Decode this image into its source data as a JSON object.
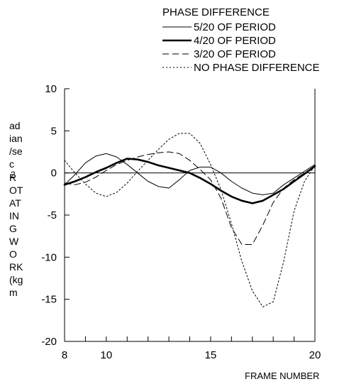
{
  "chart_data": {
    "type": "line",
    "legend": {
      "title": "PHASE DIFFERENCE",
      "placement": "top-right"
    },
    "xlabel": "FRAME NUMBER",
    "ylabel": "ROTATING WORK (kg m)",
    "ylabel_lines": [
      "ad",
      "ian",
      "/se",
      "c",
      "2",
      "R",
      "OT",
      "AT",
      "IN",
      "G",
      "W",
      "O",
      "RK",
      "(kg",
      "m"
    ],
    "xlim": [
      8,
      20
    ],
    "ylim": [
      -20,
      10
    ],
    "xticks": [
      8,
      10,
      15,
      20
    ],
    "yticks": [
      10,
      5,
      0,
      -5,
      -10,
      -15,
      -20
    ],
    "zero_line": true,
    "grid": false,
    "series": [
      {
        "name": "5/20 OF PERIOD",
        "style": "thin-solid",
        "x": [
          8,
          8.5,
          9,
          9.5,
          10,
          10.5,
          11,
          11.5,
          12,
          12.5,
          13,
          13.5,
          14,
          14.5,
          15,
          15.5,
          16,
          16.5,
          17,
          17.5,
          18,
          18.5,
          19,
          19.5,
          20
        ],
        "y": [
          -1.4,
          -0.2,
          1.2,
          2.0,
          2.3,
          1.9,
          1.0,
          0.0,
          -1.0,
          -1.6,
          -1.8,
          -0.8,
          0.3,
          0.7,
          0.7,
          0.0,
          -1.0,
          -1.8,
          -2.4,
          -2.6,
          -2.4,
          -1.4,
          -0.6,
          0.2,
          1.0
        ]
      },
      {
        "name": "4/20 OF PERIOD",
        "style": "thick-solid",
        "x": [
          8,
          8.5,
          9,
          9.5,
          10,
          10.5,
          11,
          11.5,
          12,
          12.5,
          13,
          13.5,
          14,
          14.5,
          15,
          15.5,
          16,
          16.5,
          17,
          17.5,
          18,
          18.5,
          19,
          19.5,
          20
        ],
        "y": [
          -1.4,
          -1.0,
          -0.5,
          0.1,
          0.6,
          1.2,
          1.7,
          1.6,
          1.3,
          0.9,
          0.6,
          0.3,
          0.0,
          -0.6,
          -1.3,
          -2.1,
          -2.8,
          -3.3,
          -3.6,
          -3.3,
          -2.6,
          -1.9,
          -1.0,
          -0.1,
          0.8
        ]
      },
      {
        "name": "3/20 OF PERIOD",
        "style": "dashed",
        "x": [
          8,
          8.5,
          9,
          9.5,
          10,
          10.5,
          11,
          11.5,
          12,
          12.5,
          13,
          13.5,
          14,
          14.5,
          15,
          15.5,
          16,
          16.5,
          17,
          17.5,
          18,
          18.5,
          19,
          19.5,
          20
        ],
        "y": [
          -1.2,
          -1.4,
          -1.1,
          -0.5,
          0.3,
          1.0,
          1.5,
          1.9,
          2.2,
          2.4,
          2.5,
          2.3,
          1.5,
          0.4,
          -0.8,
          -3.0,
          -6.5,
          -8.5,
          -8.5,
          -6.2,
          -3.5,
          -1.8,
          -0.8,
          0.0,
          0.7
        ]
      },
      {
        "name": "NO PHASE DIFFERENCE",
        "style": "dotted",
        "x": [
          8,
          8.5,
          9,
          9.5,
          10,
          10.5,
          11,
          11.5,
          12,
          12.5,
          13,
          13.5,
          14,
          14.5,
          15,
          15.5,
          16,
          16.5,
          17,
          17.5,
          18,
          18.5,
          19,
          19.5,
          20
        ],
        "y": [
          1.5,
          0.0,
          -1.3,
          -2.4,
          -2.8,
          -2.3,
          -1.2,
          0.2,
          1.5,
          2.8,
          4.0,
          4.7,
          4.7,
          3.5,
          1.0,
          -2.0,
          -6.0,
          -10.5,
          -14.0,
          -15.9,
          -15.3,
          -10.5,
          -4.5,
          -1.0,
          0.9
        ]
      }
    ]
  }
}
